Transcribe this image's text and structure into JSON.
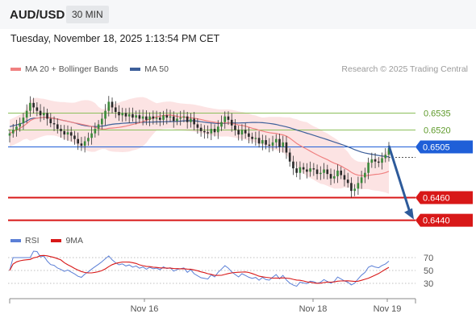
{
  "header": {
    "symbol": "AUD/USD",
    "timeframe": "30 MIN"
  },
  "timestamp": "Tuesday, November 18, 2025 1:13:54 PM CET",
  "legend": {
    "price": [
      {
        "label": "MA 20 + Bollinger Bands",
        "color": "#f08080"
      },
      {
        "label": "MA 50",
        "color": "#3d5f9a"
      }
    ],
    "rsi": [
      {
        "label": "RSI",
        "color": "#5b7fd6"
      },
      {
        "label": "9MA",
        "color": "#d81818"
      }
    ]
  },
  "copyright": "Research © 2025 Trading Central",
  "chart_data": {
    "type": "candlestick",
    "price_range": [
      0.6434,
      0.6566
    ],
    "current_price": 0.6505,
    "levels": [
      {
        "value": 0.6535,
        "label": "0.6535",
        "kind": "resistance",
        "color": "#8bbf5a"
      },
      {
        "value": 0.652,
        "label": "0.6520",
        "kind": "resistance",
        "color": "#8bbf5a"
      },
      {
        "value": 0.6505,
        "label": "0.6505",
        "kind": "current",
        "color": "#1f5fd8"
      },
      {
        "value": 0.646,
        "label": "0.6460",
        "kind": "support",
        "color": "#d81818"
      },
      {
        "value": 0.644,
        "label": "0.6440",
        "kind": "support",
        "color": "#d81818"
      }
    ],
    "forecast_arrow": {
      "from": 0.6506,
      "to": 0.644,
      "color": "#2d5a9a"
    },
    "x_ticks": [
      "Nov 16",
      "Nov 18",
      "Nov 19"
    ],
    "rsi": {
      "range": [
        15,
        80
      ],
      "ticks": [
        70,
        50,
        30
      ]
    },
    "close": [
      0.6517,
      0.652,
      0.6523,
      0.6526,
      0.6531,
      0.6537,
      0.6544,
      0.654,
      0.6537,
      0.6533,
      0.6535,
      0.653,
      0.6526,
      0.6525,
      0.6521,
      0.6519,
      0.6516,
      0.6518,
      0.6515,
      0.6512,
      0.6508,
      0.6506,
      0.651,
      0.6513,
      0.6517,
      0.6521,
      0.6525,
      0.653,
      0.6537,
      0.6545,
      0.654,
      0.6536,
      0.6533,
      0.6535,
      0.6532,
      0.6534,
      0.6531,
      0.6533,
      0.653,
      0.6532,
      0.6529,
      0.6532,
      0.653,
      0.6531,
      0.6529,
      0.6533,
      0.6531,
      0.6532,
      0.6528,
      0.653,
      0.6531,
      0.6532,
      0.6527,
      0.653,
      0.6525,
      0.6522,
      0.6519,
      0.6518,
      0.6517,
      0.6521,
      0.6518,
      0.6523,
      0.6527,
      0.6532,
      0.6529,
      0.6524,
      0.652,
      0.6516,
      0.652,
      0.6517,
      0.6514,
      0.6512,
      0.6513,
      0.6508,
      0.6511,
      0.6507,
      0.6506,
      0.6509,
      0.6512,
      0.6505,
      0.6509,
      0.65,
      0.6492,
      0.6486,
      0.6482,
      0.6487,
      0.6485,
      0.6483,
      0.6486,
      0.6485,
      0.6481,
      0.6482,
      0.6485,
      0.6481,
      0.6477,
      0.6479,
      0.6484,
      0.648,
      0.6476,
      0.6473,
      0.6466,
      0.6468,
      0.6473,
      0.6478,
      0.6482,
      0.6491,
      0.6494,
      0.6492,
      0.6491,
      0.6495,
      0.6498,
      0.6504
    ]
  }
}
